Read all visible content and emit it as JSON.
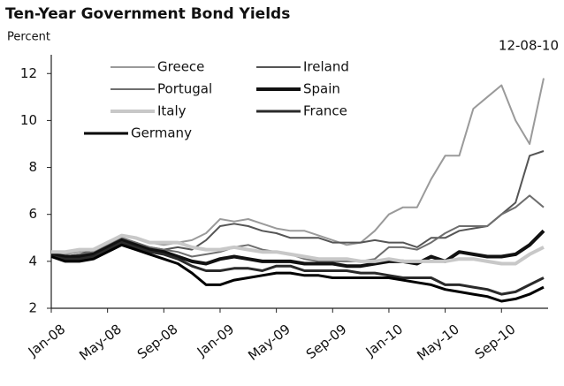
{
  "chart_data": {
    "type": "line",
    "title": "Ten-Year Government Bond Yields",
    "y_label": "Percent",
    "annotation": "12-08-10",
    "x": [
      "Jan-08",
      null,
      null,
      null,
      "May-08",
      null,
      null,
      null,
      "Sep-08",
      null,
      null,
      null,
      "Jan-09",
      null,
      null,
      null,
      "May-09",
      null,
      null,
      null,
      "Sep-09",
      null,
      null,
      null,
      "Jan-10",
      null,
      null,
      null,
      "May-10",
      null,
      null,
      null,
      "Sep-10",
      null,
      null,
      null
    ],
    "ylim": [
      2,
      12.8
    ],
    "yticks": [
      2,
      4,
      6,
      8,
      10,
      12
    ],
    "grid": false,
    "series": [
      {
        "name": "Greece",
        "color": "#9a9a9a",
        "width": 2,
        "values": [
          4.3,
          4.3,
          4.4,
          4.5,
          4.8,
          5.1,
          5.0,
          4.8,
          4.7,
          4.8,
          4.9,
          5.2,
          5.8,
          5.7,
          5.8,
          5.6,
          5.4,
          5.3,
          5.3,
          5.1,
          4.9,
          4.7,
          4.8,
          5.3,
          6.0,
          6.3,
          6.3,
          7.5,
          8.5,
          8.5,
          10.5,
          11.0,
          11.5,
          10.0,
          9.0,
          11.8
        ]
      },
      {
        "name": "Ireland",
        "color": "#555555",
        "width": 2,
        "values": [
          4.3,
          4.2,
          4.3,
          4.5,
          4.7,
          5.0,
          4.8,
          4.6,
          4.5,
          4.6,
          4.5,
          4.9,
          5.5,
          5.6,
          5.5,
          5.3,
          5.2,
          5.0,
          5.0,
          5.0,
          4.8,
          4.8,
          4.8,
          4.9,
          4.8,
          4.8,
          4.6,
          5.0,
          5.0,
          5.3,
          5.4,
          5.5,
          6.0,
          6.5,
          8.5,
          8.7
        ]
      },
      {
        "name": "Portugal",
        "color": "#6e6e6e",
        "width": 2,
        "values": [
          4.3,
          4.2,
          4.3,
          4.4,
          4.7,
          5.0,
          4.8,
          4.6,
          4.5,
          4.4,
          4.2,
          4.3,
          4.4,
          4.6,
          4.7,
          4.5,
          4.4,
          4.3,
          4.1,
          4.0,
          4.0,
          4.0,
          4.0,
          4.1,
          4.6,
          4.6,
          4.5,
          4.8,
          5.2,
          5.5,
          5.5,
          5.5,
          6.0,
          6.3,
          6.8,
          6.3
        ]
      },
      {
        "name": "Spain",
        "color": "#111111",
        "width": 4,
        "values": [
          4.3,
          4.2,
          4.2,
          4.3,
          4.6,
          4.9,
          4.7,
          4.5,
          4.4,
          4.2,
          4.0,
          3.9,
          4.1,
          4.2,
          4.1,
          4.0,
          4.0,
          4.0,
          3.9,
          3.9,
          3.9,
          3.8,
          3.8,
          3.9,
          4.0,
          4.0,
          3.9,
          4.2,
          4.0,
          4.4,
          4.3,
          4.2,
          4.2,
          4.3,
          4.7,
          5.3
        ]
      },
      {
        "name": "Italy",
        "color": "#c8c8c8",
        "width": 4,
        "values": [
          4.4,
          4.4,
          4.5,
          4.5,
          4.8,
          5.1,
          5.0,
          4.8,
          4.8,
          4.8,
          4.6,
          4.5,
          4.5,
          4.6,
          4.5,
          4.4,
          4.4,
          4.3,
          4.2,
          4.1,
          4.1,
          4.1,
          4.0,
          4.0,
          4.1,
          4.0,
          4.0,
          4.0,
          4.0,
          4.1,
          4.1,
          4.0,
          3.9,
          3.9,
          4.3,
          4.6
        ]
      },
      {
        "name": "France",
        "color": "#2a2a2a",
        "width": 3,
        "values": [
          4.2,
          4.1,
          4.1,
          4.2,
          4.5,
          4.8,
          4.6,
          4.4,
          4.3,
          4.1,
          3.8,
          3.6,
          3.6,
          3.7,
          3.7,
          3.6,
          3.8,
          3.8,
          3.6,
          3.6,
          3.6,
          3.6,
          3.5,
          3.5,
          3.4,
          3.3,
          3.3,
          3.3,
          3.0,
          3.0,
          2.9,
          2.8,
          2.6,
          2.7,
          3.0,
          3.3
        ]
      },
      {
        "name": "Germany",
        "color": "#000000",
        "width": 3,
        "values": [
          4.2,
          4.0,
          4.0,
          4.1,
          4.4,
          4.7,
          4.5,
          4.3,
          4.1,
          3.9,
          3.5,
          3.0,
          3.0,
          3.2,
          3.3,
          3.4,
          3.5,
          3.5,
          3.4,
          3.4,
          3.3,
          3.3,
          3.3,
          3.3,
          3.3,
          3.2,
          3.1,
          3.0,
          2.8,
          2.7,
          2.6,
          2.5,
          2.3,
          2.4,
          2.6,
          2.9
        ]
      }
    ]
  }
}
